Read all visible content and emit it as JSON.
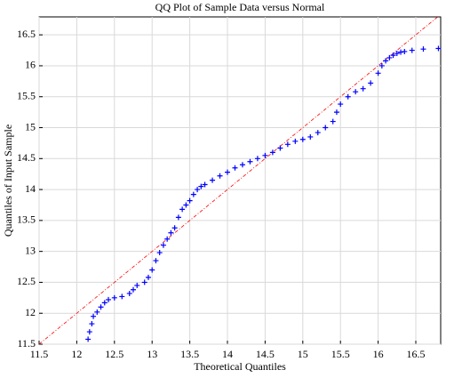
{
  "chart_data": {
    "type": "scatter",
    "title": "QQ Plot of Sample Data versus Normal",
    "x_label": "Theoretical Quantiles",
    "y_label": "Quantiles of Input Sample",
    "xlim": [
      11.5,
      16.83
    ],
    "ylim": [
      11.5,
      16.79
    ],
    "xticks": [
      11.5,
      12,
      12.5,
      13,
      13.5,
      14,
      14.5,
      15,
      15.5,
      16,
      16.5
    ],
    "yticks": [
      11.5,
      12,
      12.5,
      13,
      13.5,
      14,
      14.5,
      15,
      15.5,
      16,
      16.5
    ],
    "grid": true,
    "reference_line": {
      "color": "#ff0000",
      "x": [
        11.5,
        16.8
      ],
      "y": [
        11.5,
        16.8
      ]
    },
    "series": [
      {
        "color": "#0000ff",
        "x": [
          12.15,
          12.17,
          12.2,
          12.22,
          12.27,
          12.32,
          12.37,
          12.42,
          12.5,
          12.6,
          12.7,
          12.75,
          12.8,
          12.9,
          12.95,
          13.0,
          13.05,
          13.1,
          13.15,
          13.2,
          13.25,
          13.3,
          13.35,
          13.4,
          13.45,
          13.5,
          13.55,
          13.6,
          13.65,
          13.7,
          13.8,
          13.9,
          14.0,
          14.1,
          14.2,
          14.3,
          14.4,
          14.5,
          14.6,
          14.7,
          14.8,
          14.9,
          15.0,
          15.1,
          15.2,
          15.3,
          15.4,
          15.45,
          15.5,
          15.6,
          15.7,
          15.8,
          15.9,
          16.0,
          16.05,
          16.1,
          16.15,
          16.2,
          16.25,
          16.3,
          16.35,
          16.45,
          16.6,
          16.8
        ],
        "values": [
          11.58,
          11.7,
          11.83,
          11.95,
          12.02,
          12.1,
          12.17,
          12.22,
          12.25,
          12.27,
          12.32,
          12.38,
          12.45,
          12.5,
          12.58,
          12.7,
          12.85,
          12.98,
          13.1,
          13.2,
          13.3,
          13.38,
          13.55,
          13.68,
          13.75,
          13.82,
          13.92,
          14.0,
          14.05,
          14.08,
          14.15,
          14.22,
          14.28,
          14.35,
          14.4,
          14.45,
          14.5,
          14.55,
          14.6,
          14.67,
          14.73,
          14.78,
          14.81,
          14.85,
          14.92,
          15.0,
          15.1,
          15.25,
          15.38,
          15.5,
          15.58,
          15.63,
          15.72,
          15.88,
          16.0,
          16.08,
          16.13,
          16.17,
          16.2,
          16.22,
          16.23,
          16.25,
          16.27,
          16.28
        ]
      }
    ]
  }
}
